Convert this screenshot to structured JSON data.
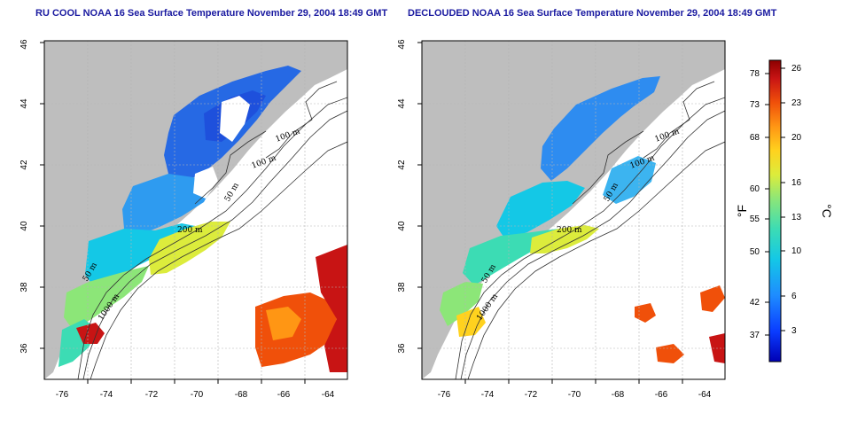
{
  "panels": [
    {
      "id": "left",
      "title": "RU COOL NOAA 16 Sea Surface Temperature November 29, 2004 18:49 GMT",
      "contour_labels": [
        "100 m",
        "100 m",
        "50 m",
        "200 m",
        "50 m",
        "1000 m"
      ]
    },
    {
      "id": "right",
      "title": "DECLOUDED NOAA 16 Sea Surface Temperature November 29, 2004 18:49 GMT",
      "contour_labels": [
        "100 m",
        "100 m",
        "50 m",
        "200 m",
        "50 m",
        "1000 m"
      ]
    }
  ],
  "axes": {
    "lon_ticks": [
      "-76",
      "-74",
      "-72",
      "-70",
      "-68",
      "-66",
      "-64"
    ],
    "lat_ticks": [
      "36",
      "38",
      "40",
      "42",
      "44",
      "46"
    ]
  },
  "colorbar": {
    "fahrenheit_ticks": [
      "78",
      "73",
      "68",
      "60",
      "55",
      "50",
      "42",
      "37"
    ],
    "celsius_ticks": [
      "26",
      "23",
      "20",
      "16",
      "13",
      "10",
      "6",
      "3"
    ],
    "fahrenheit_unit": "°F",
    "celsius_unit": "°C",
    "colors": [
      "#0000b4",
      "#0a3cff",
      "#1e8cff",
      "#14c8e6",
      "#3cdcb4",
      "#8ce678",
      "#dcec3c",
      "#ffd21e",
      "#ff9614",
      "#f0500a",
      "#c81414",
      "#8c0000"
    ]
  },
  "colors": {
    "land": "#bebebe",
    "cloud": "#ffffff",
    "grid": "#b4b4b4"
  }
}
